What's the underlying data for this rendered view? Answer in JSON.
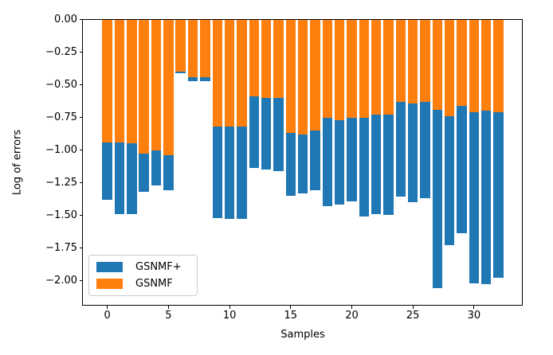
{
  "chart_data": {
    "type": "bar",
    "stacked": true,
    "note": "Bars extend downward from 0; orange (GSNMF) segment spans 0 to its value, blue (GSNMF+) segment stacks below it down to the total.",
    "title": "",
    "xlabel": "Samples",
    "ylabel": "Log of errors",
    "x": [
      0,
      1,
      2,
      3,
      4,
      5,
      6,
      7,
      8,
      9,
      10,
      11,
      12,
      13,
      14,
      15,
      16,
      17,
      18,
      19,
      20,
      21,
      22,
      23,
      24,
      25,
      26,
      27,
      28,
      29,
      30,
      31,
      32
    ],
    "series": [
      {
        "name": "GSNMF+",
        "color": "#1f77b4",
        "values": [
          -0.44,
          -0.55,
          -0.54,
          -0.29,
          -0.27,
          -0.27,
          -0.01,
          -0.03,
          -0.03,
          -0.7,
          -0.71,
          -0.71,
          -0.55,
          -0.55,
          -0.56,
          -0.48,
          -0.45,
          -0.46,
          -0.68,
          -0.65,
          -0.64,
          -0.76,
          -0.76,
          -0.77,
          -0.73,
          -0.76,
          -0.74,
          -1.37,
          -0.99,
          -0.98,
          -1.31,
          -1.33,
          -1.27
        ]
      },
      {
        "name": "GSNMF",
        "color": "#ff7f0e",
        "values": [
          -0.94,
          -0.94,
          -0.95,
          -1.03,
          -1.0,
          -1.04,
          -0.4,
          -0.44,
          -0.44,
          -0.82,
          -0.82,
          -0.82,
          -0.59,
          -0.6,
          -0.6,
          -0.87,
          -0.88,
          -0.85,
          -0.75,
          -0.77,
          -0.75,
          -0.75,
          -0.73,
          -0.73,
          -0.63,
          -0.64,
          -0.63,
          -0.69,
          -0.74,
          -0.66,
          -0.71,
          -0.7,
          -0.71
        ]
      }
    ],
    "totals": [
      -1.38,
      -1.49,
      -1.49,
      -1.32,
      -1.27,
      -1.31,
      -0.41,
      -0.47,
      -0.47,
      -1.52,
      -1.53,
      -1.53,
      -1.14,
      -1.15,
      -1.16,
      -1.35,
      -1.33,
      -1.31,
      -1.43,
      -1.42,
      -1.39,
      -1.51,
      -1.49,
      -1.5,
      -1.36,
      -1.4,
      -1.37,
      -2.06,
      -1.73,
      -1.64,
      -2.02,
      -2.03,
      -1.98
    ],
    "xticks": [
      0,
      5,
      10,
      15,
      20,
      25,
      30
    ],
    "yticks": [
      0,
      -0.25,
      -0.5,
      -0.75,
      -1,
      -1.25,
      -1.5,
      -1.75,
      -2
    ],
    "xtick_labels": [
      "0",
      "5",
      "10",
      "15",
      "20",
      "25",
      "30"
    ],
    "ytick_labels": [
      "0.00",
      "−0.25",
      "−0.50",
      "−0.75",
      "−1.00",
      "−1.25",
      "−1.50",
      "−1.75",
      "−2.00"
    ],
    "ylim": [
      -2.19,
      0
    ],
    "xlim": [
      -2.0,
      34.0
    ],
    "grid": false,
    "legend_position": "lower left"
  },
  "legend": {
    "items": [
      {
        "label": "GSNMF+",
        "color": "#1f77b4"
      },
      {
        "label": "GSNMF",
        "color": "#ff7f0e"
      }
    ]
  },
  "colors": {
    "blue": "#1f77b4",
    "orange": "#ff7f0e",
    "spine": "#000000",
    "legend_border": "#cccccc",
    "background": "#ffffff"
  }
}
